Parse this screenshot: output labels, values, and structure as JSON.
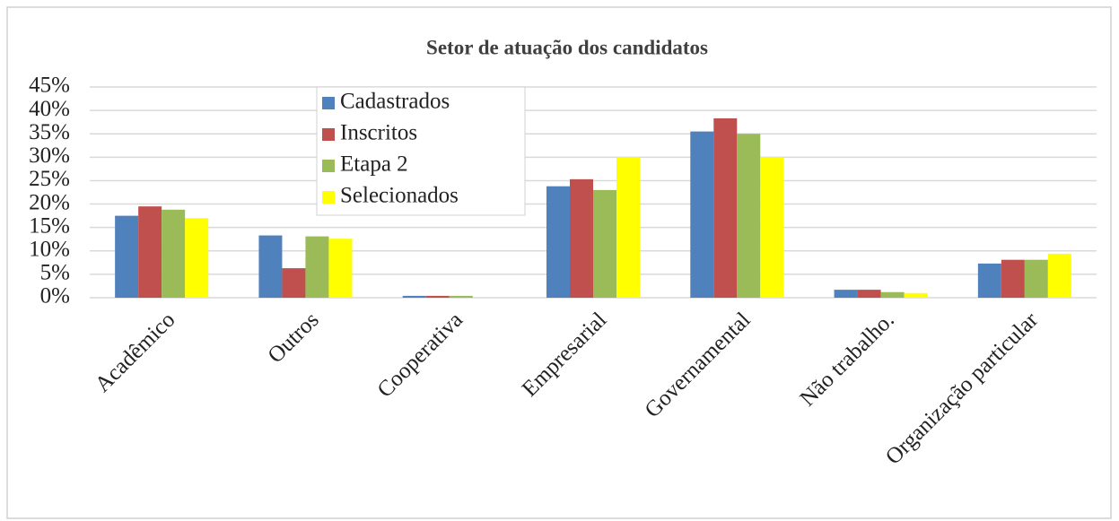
{
  "chart_data": {
    "type": "bar",
    "title": "Setor de atuação dos candidatos",
    "categories": [
      "Acadêmico",
      "Outros",
      "Cooperativa",
      "Empresarial",
      "Governamental",
      "Não trabalho.",
      "Organização particular"
    ],
    "series": [
      {
        "name": "Cadastrados",
        "color": "#4f81bd",
        "values": [
          17.5,
          13.3,
          0.4,
          23.8,
          35.5,
          1.7,
          7.3
        ]
      },
      {
        "name": "Inscritos",
        "color": "#c0504d",
        "values": [
          19.5,
          6.3,
          0.4,
          25.3,
          38.3,
          1.7,
          8.1
        ]
      },
      {
        "name": "Etapa 2",
        "color": "#9bbb59",
        "values": [
          18.8,
          13.1,
          0.4,
          23,
          35,
          1.2,
          8.1
        ]
      },
      {
        "name": "Selecionados",
        "color": "#ffff00",
        "values": [
          17,
          12.6,
          0,
          30,
          30,
          1,
          9.4
        ]
      }
    ],
    "ylim": [
      0,
      45
    ],
    "yticks": [
      {
        "value": 0,
        "label": "0%"
      },
      {
        "value": 5,
        "label": "5%"
      },
      {
        "value": 10,
        "label": "10%"
      },
      {
        "value": 15,
        "label": "15%"
      },
      {
        "value": 20,
        "label": "20%"
      },
      {
        "value": 25,
        "label": "25%"
      },
      {
        "value": 30,
        "label": "30%"
      },
      {
        "value": 35,
        "label": "35%"
      },
      {
        "value": 40,
        "label": "40%"
      },
      {
        "value": 45,
        "label": "45%"
      }
    ],
    "grid": true,
    "legend": "upper left"
  }
}
